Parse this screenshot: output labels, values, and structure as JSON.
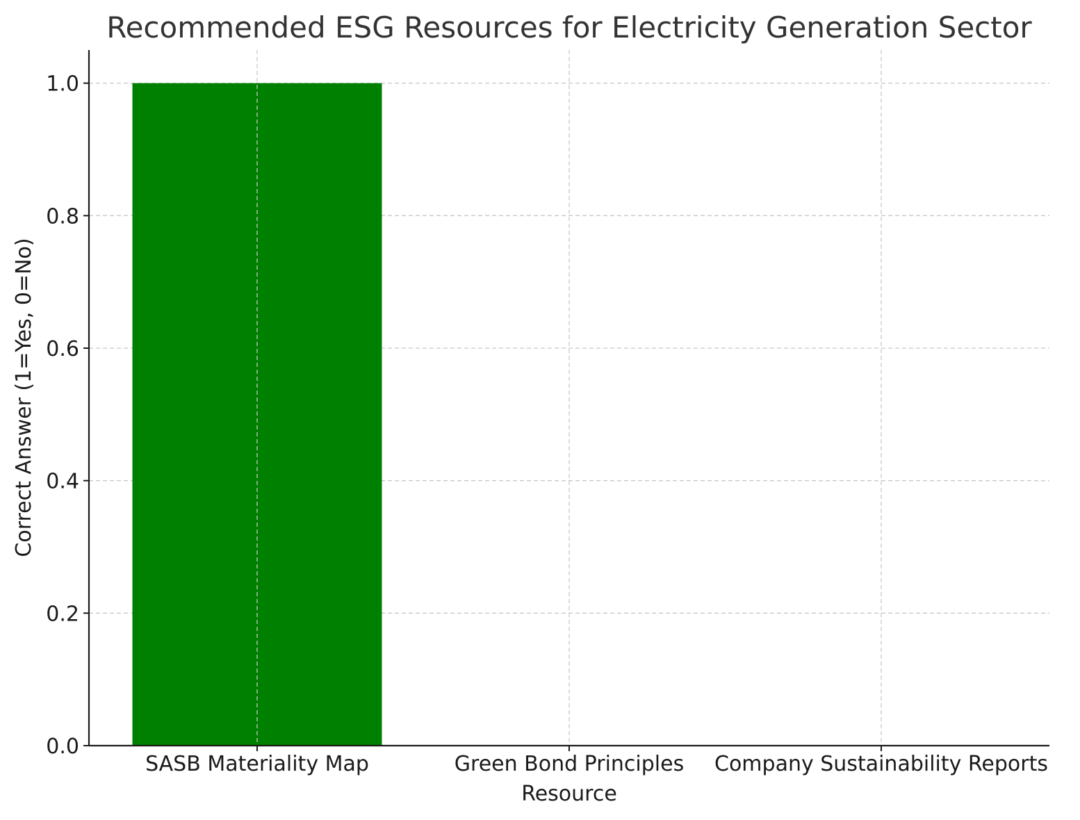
{
  "chart_data": {
    "type": "bar",
    "title": "Recommended ESG Resources for Electricity Generation Sector",
    "xlabel": "Resource",
    "ylabel": "Correct Answer (1=Yes, 0=No)",
    "categories": [
      "SASB Materiality Map",
      "Green Bond Principles",
      "Company Sustainability Reports"
    ],
    "values": [
      1,
      0,
      0
    ],
    "ylim": [
      0,
      1.05
    ],
    "yticks": [
      "0.0",
      "0.2",
      "0.4",
      "0.6",
      "0.8",
      "1.0"
    ],
    "grid": true,
    "bar_color": "#008000"
  }
}
